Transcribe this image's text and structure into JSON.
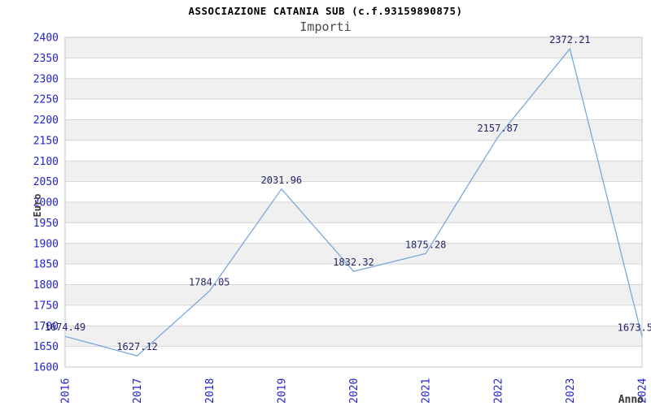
{
  "header": {
    "title": "ASSOCIAZIONE CATANIA SUB (c.f.93159890875)",
    "subtitle": "Importi"
  },
  "chart_data": {
    "type": "line",
    "title": "ASSOCIAZIONE CATANIA SUB (c.f.93159890875)",
    "subtitle": "Importi",
    "xlabel": "Anno",
    "ylabel": "Euro",
    "categories": [
      "2016",
      "2017",
      "2018",
      "2019",
      "2020",
      "2021",
      "2022",
      "2023",
      "2024"
    ],
    "values": [
      1674.49,
      1627.12,
      1784.05,
      2031.96,
      1832.32,
      1875.28,
      2157.87,
      2372.21,
      1673.5
    ],
    "point_labels": [
      "1674.49",
      "1627.12",
      "1784.05",
      "2031.96",
      "1832.32",
      "1875.28",
      "2157.87",
      "2372.21",
      "1673.5"
    ],
    "ylim": [
      1600,
      2400
    ],
    "ytick_step": 50,
    "legend": "none",
    "grid": "horizontal-gridlines-with-alternating-bands",
    "x_tick_rotation": -90,
    "colors": {
      "line": "#7aa8dc",
      "tick_label": "#2222cc",
      "data_label": "#24246a",
      "axis_title": "#3a3a3a",
      "band": "#f0f0f0",
      "grid_line": "#d6d6d6",
      "border": "#c6c6c6",
      "title": "#000000",
      "subtitle": "#4a4a4a"
    }
  }
}
